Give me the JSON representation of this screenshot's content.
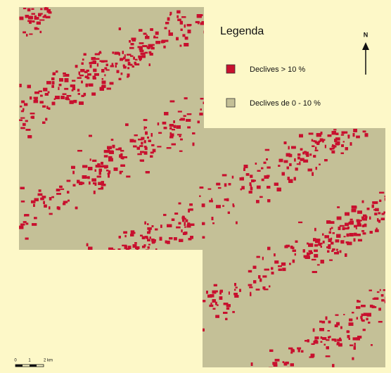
{
  "legend": {
    "title": "Legenda",
    "items": [
      {
        "label": "Declives > 10 %",
        "color": "#c8102e"
      },
      {
        "label": "Declives de 0 - 10 %",
        "color": "#c4c097"
      }
    ]
  },
  "north_label": "N",
  "scale_bar": {
    "labels": [
      "0",
      "1",
      "2 km"
    ]
  }
}
